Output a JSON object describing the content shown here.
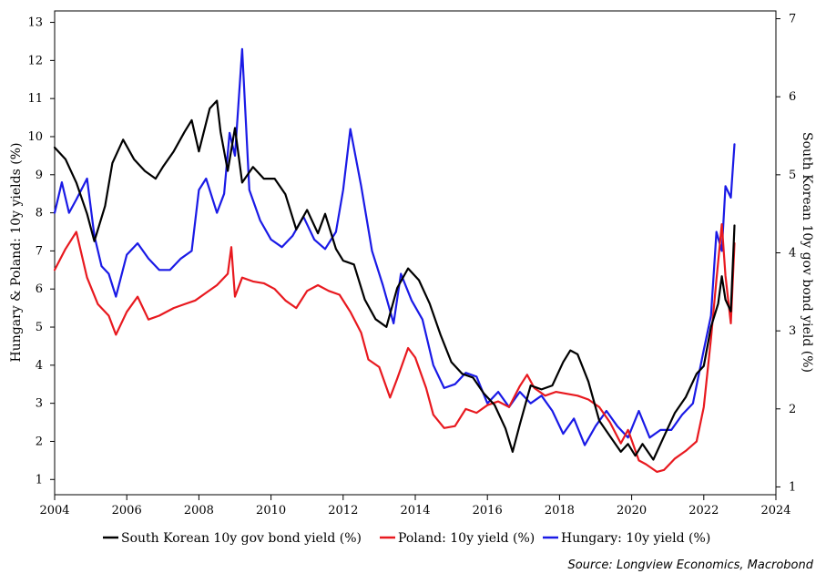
{
  "chart_data": {
    "type": "line",
    "source": "Source: Longview Economics, Macrobond",
    "x_axis": {
      "ticks": [
        "2004",
        "2006",
        "2008",
        "2010",
        "2012",
        "2014",
        "2016",
        "2018",
        "2020",
        "2022",
        "2024"
      ],
      "range": [
        2004,
        2024
      ]
    },
    "y_left": {
      "label": "Hungary & Poland: 10y yields (%)",
      "ticks": [
        "1",
        "2",
        "3",
        "4",
        "5",
        "6",
        "7",
        "8",
        "9",
        "10",
        "11",
        "12",
        "13"
      ],
      "range": [
        0.6,
        13.3
      ]
    },
    "y_right": {
      "label": "South Korean 10y gov bond yield (%)",
      "ticks": [
        "1",
        "2",
        "3",
        "4",
        "5",
        "6",
        "7"
      ],
      "range": [
        0.9,
        7.1
      ]
    },
    "series": [
      {
        "name": "South Korean 10y gov bond yield (%)",
        "axis": "right",
        "color": "#000000",
        "x": [
          2004.0,
          2004.3,
          2004.6,
          2004.9,
          2005.1,
          2005.4,
          2005.6,
          2005.9,
          2006.2,
          2006.5,
          2006.8,
          2007.0,
          2007.3,
          2007.6,
          2007.8,
          2008.0,
          2008.3,
          2008.5,
          2008.6,
          2008.8,
          2009.0,
          2009.2,
          2009.5,
          2009.8,
          2010.1,
          2010.4,
          2010.7,
          2011.0,
          2011.3,
          2011.5,
          2011.8,
          2012.0,
          2012.3,
          2012.6,
          2012.9,
          2013.2,
          2013.5,
          2013.8,
          2014.1,
          2014.4,
          2014.7,
          2015.0,
          2015.3,
          2015.6,
          2015.9,
          2016.2,
          2016.5,
          2016.7,
          2016.9,
          2017.2,
          2017.5,
          2017.8,
          2018.1,
          2018.3,
          2018.5,
          2018.8,
          2019.1,
          2019.4,
          2019.7,
          2019.9,
          2020.1,
          2020.3,
          2020.6,
          2020.9,
          2021.2,
          2021.5,
          2021.8,
          2022.0,
          2022.2,
          2022.4,
          2022.5,
          2022.6,
          2022.75,
          2022.85
        ],
        "values": [
          5.35,
          5.2,
          4.9,
          4.5,
          4.15,
          4.6,
          5.15,
          5.45,
          5.2,
          5.05,
          4.95,
          5.1,
          5.3,
          5.55,
          5.7,
          5.3,
          5.85,
          5.95,
          5.55,
          5.05,
          5.6,
          4.9,
          5.1,
          4.95,
          4.95,
          4.75,
          4.3,
          4.55,
          4.25,
          4.5,
          4.05,
          3.9,
          3.85,
          3.4,
          3.15,
          3.05,
          3.55,
          3.8,
          3.65,
          3.35,
          2.95,
          2.6,
          2.45,
          2.4,
          2.2,
          2.05,
          1.75,
          1.45,
          1.8,
          2.3,
          2.25,
          2.3,
          2.6,
          2.75,
          2.7,
          2.35,
          1.85,
          1.65,
          1.45,
          1.55,
          1.4,
          1.55,
          1.35,
          1.65,
          1.95,
          2.15,
          2.45,
          2.55,
          3.05,
          3.35,
          3.7,
          3.4,
          3.25,
          4.35
        ]
      },
      {
        "name": "Poland: 10y yield (%)",
        "axis": "left",
        "color": "#e8191f",
        "x": [
          2004.0,
          2004.3,
          2004.6,
          2004.9,
          2005.2,
          2005.5,
          2005.7,
          2006.0,
          2006.3,
          2006.6,
          2006.9,
          2007.3,
          2007.6,
          2007.9,
          2008.2,
          2008.5,
          2008.8,
          2008.9,
          2009.0,
          2009.2,
          2009.5,
          2009.8,
          2010.1,
          2010.4,
          2010.7,
          2011.0,
          2011.3,
          2011.6,
          2011.9,
          2012.2,
          2012.5,
          2012.7,
          2013.0,
          2013.3,
          2013.5,
          2013.8,
          2014.0,
          2014.3,
          2014.5,
          2014.8,
          2015.1,
          2015.4,
          2015.7,
          2016.0,
          2016.3,
          2016.6,
          2016.9,
          2017.1,
          2017.3,
          2017.6,
          2017.9,
          2018.2,
          2018.5,
          2018.8,
          2019.1,
          2019.4,
          2019.7,
          2019.9,
          2020.2,
          2020.4,
          2020.7,
          2020.9,
          2021.2,
          2021.5,
          2021.8,
          2022.0,
          2022.2,
          2022.35,
          2022.5,
          2022.6,
          2022.75,
          2022.85
        ],
        "values": [
          6.5,
          7.05,
          7.5,
          6.3,
          5.6,
          5.3,
          4.8,
          5.4,
          5.8,
          5.2,
          5.3,
          5.5,
          5.6,
          5.7,
          5.9,
          6.1,
          6.4,
          7.1,
          5.8,
          6.3,
          6.2,
          6.15,
          6.0,
          5.7,
          5.5,
          5.95,
          6.1,
          5.95,
          5.85,
          5.4,
          4.85,
          4.15,
          3.95,
          3.15,
          3.65,
          4.45,
          4.2,
          3.4,
          2.7,
          2.35,
          2.4,
          2.85,
          2.75,
          2.95,
          3.05,
          2.9,
          3.45,
          3.75,
          3.4,
          3.2,
          3.3,
          3.25,
          3.2,
          3.1,
          2.9,
          2.5,
          1.95,
          2.3,
          1.5,
          1.4,
          1.2,
          1.25,
          1.55,
          1.75,
          2.0,
          2.9,
          4.7,
          6.25,
          7.7,
          6.35,
          5.1,
          7.2
        ]
      },
      {
        "name": "Hungary: 10y yield (%)",
        "axis": "left",
        "color": "#1a1ae6",
        "x": [
          2004.0,
          2004.2,
          2004.4,
          2004.6,
          2004.9,
          2005.1,
          2005.3,
          2005.5,
          2005.7,
          2006.0,
          2006.3,
          2006.6,
          2006.9,
          2007.2,
          2007.5,
          2007.8,
          2008.0,
          2008.2,
          2008.5,
          2008.7,
          2008.85,
          2009.0,
          2009.2,
          2009.4,
          2009.7,
          2010.0,
          2010.3,
          2010.6,
          2010.9,
          2011.2,
          2011.5,
          2011.8,
          2012.0,
          2012.2,
          2012.5,
          2012.8,
          2013.1,
          2013.4,
          2013.6,
          2013.9,
          2014.2,
          2014.5,
          2014.8,
          2015.1,
          2015.4,
          2015.7,
          2016.0,
          2016.3,
          2016.6,
          2016.9,
          2017.2,
          2017.5,
          2017.8,
          2018.1,
          2018.4,
          2018.7,
          2019.0,
          2019.3,
          2019.6,
          2019.9,
          2020.2,
          2020.5,
          2020.8,
          2021.1,
          2021.4,
          2021.7,
          2022.0,
          2022.2,
          2022.35,
          2022.5,
          2022.6,
          2022.75,
          2022.85
        ],
        "values": [
          8.0,
          8.8,
          8.0,
          8.35,
          8.9,
          7.4,
          6.6,
          6.4,
          5.8,
          6.9,
          7.2,
          6.8,
          6.5,
          6.5,
          6.8,
          7.0,
          8.6,
          8.9,
          8.0,
          8.5,
          10.1,
          9.5,
          12.3,
          8.6,
          7.8,
          7.3,
          7.1,
          7.4,
          7.9,
          7.3,
          7.05,
          7.5,
          8.6,
          10.2,
          8.7,
          7.0,
          6.1,
          5.1,
          6.4,
          5.7,
          5.2,
          4.0,
          3.4,
          3.5,
          3.8,
          3.7,
          3.0,
          3.3,
          2.9,
          3.3,
          3.0,
          3.2,
          2.8,
          2.2,
          2.6,
          1.9,
          2.4,
          2.8,
          2.4,
          2.1,
          2.8,
          2.1,
          2.3,
          2.3,
          2.7,
          3.0,
          4.4,
          5.3,
          7.5,
          7.0,
          8.7,
          8.4,
          9.8
        ]
      }
    ]
  }
}
